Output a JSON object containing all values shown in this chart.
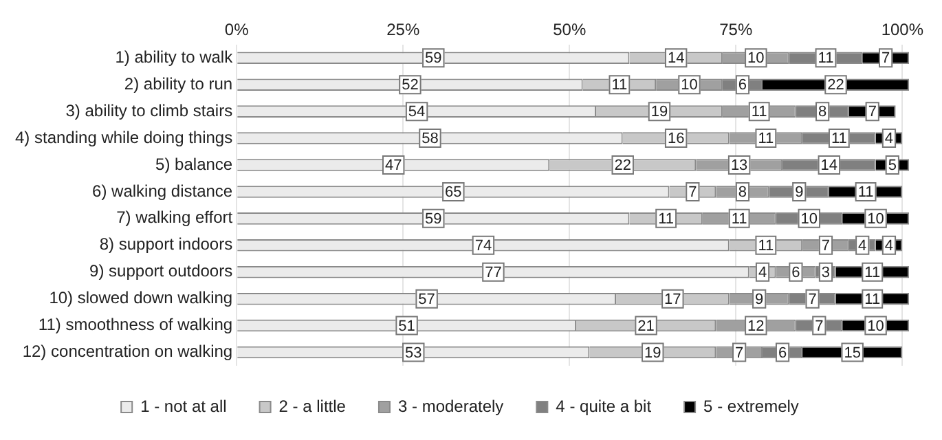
{
  "chart_data": {
    "type": "bar",
    "orientation": "horizontal",
    "stacked": true,
    "categories": [
      "1) ability to walk",
      "2) ability to run",
      "3) ability to climb stairs",
      "4) standing while doing things",
      "5) balance",
      "6) walking distance",
      "7) walking effort",
      "8) support indoors",
      "9) support outdoors",
      "10) slowed down walking",
      "11) smoothness of walking",
      "12) concentration on walking"
    ],
    "series": [
      {
        "name": "1 - not at all",
        "color": "#ebebeb",
        "values": [
          59,
          52,
          54,
          58,
          47,
          65,
          59,
          74,
          77,
          57,
          51,
          53
        ]
      },
      {
        "name": "2 - a little",
        "color": "#c8c8c8",
        "values": [
          14,
          11,
          19,
          16,
          22,
          7,
          11,
          11,
          4,
          17,
          21,
          19
        ]
      },
      {
        "name": "3 - moderately",
        "color": "#a0a0a0",
        "values": [
          10,
          10,
          11,
          11,
          13,
          8,
          11,
          7,
          6,
          9,
          12,
          7
        ]
      },
      {
        "name": "4 - quite a bit",
        "color": "#808080",
        "values": [
          11,
          6,
          8,
          11,
          14,
          9,
          10,
          4,
          3,
          7,
          7,
          6
        ]
      },
      {
        "name": "5 - extremely",
        "color": "#000000",
        "values": [
          7,
          22,
          7,
          4,
          5,
          11,
          10,
          4,
          11,
          11,
          10,
          15
        ]
      }
    ],
    "xlim": [
      0,
      101
    ],
    "xticks": [
      {
        "value": 0,
        "label": "0%"
      },
      {
        "value": 25,
        "label": "25%"
      },
      {
        "value": 50,
        "label": "50%"
      },
      {
        "value": 75,
        "label": "75%"
      },
      {
        "value": 100,
        "label": "100%"
      }
    ],
    "grid": "x",
    "legend": "bottom",
    "data_labels": true
  }
}
